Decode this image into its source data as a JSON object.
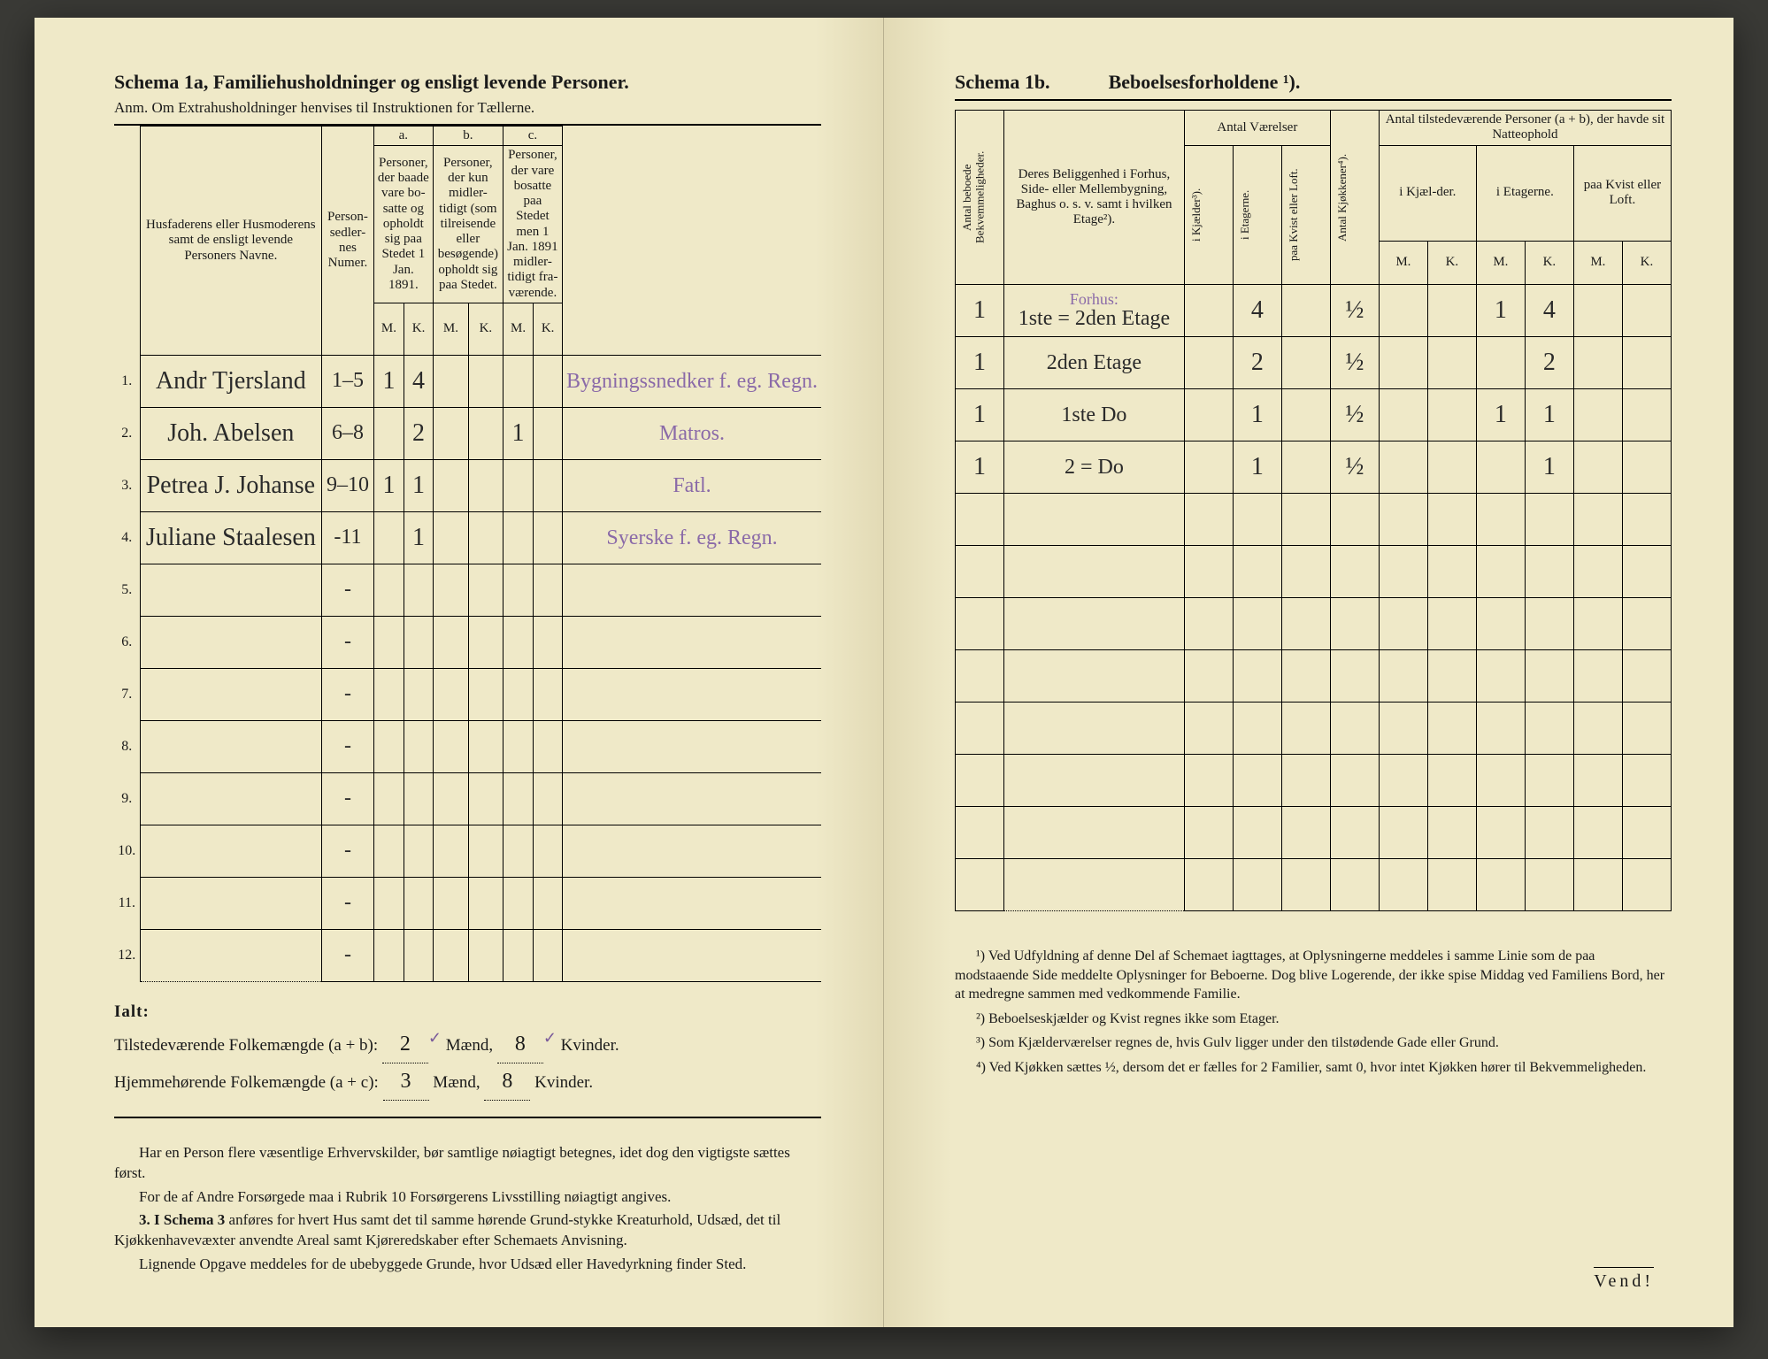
{
  "left": {
    "schema_label": "Schema 1a,",
    "schema_title": "Familiehusholdninger og ensligt levende Personer.",
    "anm": "Anm. Om Extrahusholdninger henvises til Instruktionen for Tællerne.",
    "col_name": "Husfaderens eller Husmoderens samt de ensligt levende Personers Navne.",
    "col_pers": "Person-sedler-nes Numer.",
    "group_a": "a.",
    "group_a_text": "Personer, der baade vare bo-satte og opholdt sig paa Stedet 1 Jan. 1891.",
    "group_b": "b.",
    "group_b_text": "Personer, der kun midler-tidigt (som tilreisende eller besøgende) opholdt sig paa Stedet.",
    "group_c": "c.",
    "group_c_text": "Personer, der vare bosatte paa Stedet men 1 Jan. 1891 midler-tidigt fra-værende.",
    "mk_m": "M.",
    "mk_k": "K.",
    "rows": [
      {
        "n": "1.",
        "name": "Andr Tjersland",
        "pers": "1–5",
        "am": "1",
        "ak": "4",
        "bm": "",
        "bk": "",
        "cm": "",
        "ck": "",
        "occ": "Bygningssnedker f. eg. Regn."
      },
      {
        "n": "2.",
        "name": "Joh. Abelsen",
        "pers": "6–8",
        "am": "",
        "ak": "2",
        "bm": "",
        "bk": "",
        "cm": "1",
        "ck": "",
        "occ": "Matros."
      },
      {
        "n": "3.",
        "name": "Petrea J. Johanse",
        "pers": "9–10",
        "am": "1",
        "ak": "1",
        "bm": "",
        "bk": "",
        "cm": "",
        "ck": "",
        "occ": "Fatl."
      },
      {
        "n": "4.",
        "name": "Juliane Staalesen",
        "pers": "-11",
        "am": "",
        "ak": "1",
        "bm": "",
        "bk": "",
        "cm": "",
        "ck": "",
        "occ": "Syerske f. eg. Regn."
      },
      {
        "n": "5.",
        "name": "",
        "pers": "-",
        "am": "",
        "ak": "",
        "bm": "",
        "bk": "",
        "cm": "",
        "ck": "",
        "occ": ""
      },
      {
        "n": "6.",
        "name": "",
        "pers": "-",
        "am": "",
        "ak": "",
        "bm": "",
        "bk": "",
        "cm": "",
        "ck": "",
        "occ": ""
      },
      {
        "n": "7.",
        "name": "",
        "pers": "-",
        "am": "",
        "ak": "",
        "bm": "",
        "bk": "",
        "cm": "",
        "ck": "",
        "occ": ""
      },
      {
        "n": "8.",
        "name": "",
        "pers": "-",
        "am": "",
        "ak": "",
        "bm": "",
        "bk": "",
        "cm": "",
        "ck": "",
        "occ": ""
      },
      {
        "n": "9.",
        "name": "",
        "pers": "-",
        "am": "",
        "ak": "",
        "bm": "",
        "bk": "",
        "cm": "",
        "ck": "",
        "occ": ""
      },
      {
        "n": "10.",
        "name": "",
        "pers": "-",
        "am": "",
        "ak": "",
        "bm": "",
        "bk": "",
        "cm": "",
        "ck": "",
        "occ": ""
      },
      {
        "n": "11.",
        "name": "",
        "pers": "-",
        "am": "",
        "ak": "",
        "bm": "",
        "bk": "",
        "cm": "",
        "ck": "",
        "occ": ""
      },
      {
        "n": "12.",
        "name": "",
        "pers": "-",
        "am": "",
        "ak": "",
        "bm": "",
        "bk": "",
        "cm": "",
        "ck": "",
        "occ": ""
      }
    ],
    "ialt": "Ialt:",
    "tot1_label": "Tilstedeværende Folkemængde (a + b):",
    "tot1_m": "2",
    "tot1_m_unit": "Mænd,",
    "tot1_k": "8",
    "tot1_k_unit": "Kvinder.",
    "tot2_label": "Hjemmehørende Folkemængde (a + c):",
    "tot2_m": "3",
    "tot2_m_unit": "Mænd,",
    "tot2_k": "8",
    "tot2_k_unit": "Kvinder.",
    "para1": "Har en Person flere væsentlige Erhvervskilder, bør samtlige nøiagtigt betegnes, idet dog den vigtigste sættes først.",
    "para2": "For de af Andre Forsørgede maa i Rubrik 10 Forsørgerens Livsstilling nøiagtigt angives.",
    "para3_lead": "3. I Schema 3",
    "para3": " anføres for hvert Hus samt det til samme hørende Grund-stykke Kreaturhold, Udsæd, det til Kjøkkenhavevæxter anvendte Areal samt Kjøreredskaber efter Schemaets Anvisning.",
    "para4": "Lignende Opgave meddeles for de ubebyggede Grunde, hvor Udsæd eller Havedyrkning finder Sted."
  },
  "right": {
    "schema_label": "Schema 1b.",
    "schema_title": "Beboelsesforholdene ¹).",
    "col_bekv": "Antal beboede Bekvemmeligheder.",
    "col_belig": "Deres Beliggenhed i Forhus, Side- eller Mellembygning, Baghus o. s. v. samt i hvilken Etage²).",
    "grp_vaer": "Antal Værelser",
    "v_kj": "i Kjælder³).",
    "v_et": "i Etagerne.",
    "v_kv": "paa Kvist eller Loft.",
    "col_kjok": "Antal Kjøkkener⁴).",
    "grp_pers": "Antal tilstedeværende Personer (a + b), der havde sit Natteophold",
    "p_kj": "i Kjæl-der.",
    "p_et": "i Etagerne.",
    "p_kv": "paa Kvist eller Loft.",
    "mk_m": "M.",
    "mk_k": "K.",
    "forhus": "Forhus:",
    "rows": [
      {
        "bekv": "1",
        "belig": "1ste = 2den Etage",
        "vkj": "",
        "vet": "4",
        "vkv": "",
        "kjok": "½",
        "kjm": "",
        "kjk": "",
        "etm": "1",
        "etk": "4",
        "kvm": "",
        "kvk": ""
      },
      {
        "bekv": "1",
        "belig": "2den Etage",
        "vkj": "",
        "vet": "2",
        "vkv": "",
        "kjok": "½",
        "kjm": "",
        "kjk": "",
        "etm": "",
        "etk": "2",
        "kvm": "",
        "kvk": ""
      },
      {
        "bekv": "1",
        "belig": "1ste   Do",
        "vkj": "",
        "vet": "1",
        "vkv": "",
        "kjok": "½",
        "kjm": "",
        "kjk": "",
        "etm": "1",
        "etk": "1",
        "kvm": "",
        "kvk": ""
      },
      {
        "bekv": "1",
        "belig": "2 =    Do",
        "vkj": "",
        "vet": "1",
        "vkv": "",
        "kjok": "½",
        "kjm": "",
        "kjk": "",
        "etm": "",
        "etk": "1",
        "kvm": "",
        "kvk": ""
      },
      {
        "bekv": "",
        "belig": "",
        "vkj": "",
        "vet": "",
        "vkv": "",
        "kjok": "",
        "kjm": "",
        "kjk": "",
        "etm": "",
        "etk": "",
        "kvm": "",
        "kvk": ""
      },
      {
        "bekv": "",
        "belig": "",
        "vkj": "",
        "vet": "",
        "vkv": "",
        "kjok": "",
        "kjm": "",
        "kjk": "",
        "etm": "",
        "etk": "",
        "kvm": "",
        "kvk": ""
      },
      {
        "bekv": "",
        "belig": "",
        "vkj": "",
        "vet": "",
        "vkv": "",
        "kjok": "",
        "kjm": "",
        "kjk": "",
        "etm": "",
        "etk": "",
        "kvm": "",
        "kvk": ""
      },
      {
        "bekv": "",
        "belig": "",
        "vkj": "",
        "vet": "",
        "vkv": "",
        "kjok": "",
        "kjm": "",
        "kjk": "",
        "etm": "",
        "etk": "",
        "kvm": "",
        "kvk": ""
      },
      {
        "bekv": "",
        "belig": "",
        "vkj": "",
        "vet": "",
        "vkv": "",
        "kjok": "",
        "kjm": "",
        "kjk": "",
        "etm": "",
        "etk": "",
        "kvm": "",
        "kvk": ""
      },
      {
        "bekv": "",
        "belig": "",
        "vkj": "",
        "vet": "",
        "vkv": "",
        "kjok": "",
        "kjm": "",
        "kjk": "",
        "etm": "",
        "etk": "",
        "kvm": "",
        "kvk": ""
      },
      {
        "bekv": "",
        "belig": "",
        "vkj": "",
        "vet": "",
        "vkv": "",
        "kjok": "",
        "kjm": "",
        "kjk": "",
        "etm": "",
        "etk": "",
        "kvm": "",
        "kvk": ""
      },
      {
        "bekv": "",
        "belig": "",
        "vkj": "",
        "vet": "",
        "vkv": "",
        "kjok": "",
        "kjm": "",
        "kjk": "",
        "etm": "",
        "etk": "",
        "kvm": "",
        "kvk": ""
      }
    ],
    "fn1_lead": "¹)",
    "fn1": " Ved Udfyldning af denne Del af Schemaet iagttages, at Oplysningerne meddeles i samme Linie som de paa modstaaende Side meddelte Oplysninger for Beboerne. Dog blive Logerende, der ikke spise Middag ved Familiens Bord, her at medregne sammen med vedkommende Familie.",
    "fn2_lead": "²)",
    "fn2": " Beboelseskjælder og Kvist regnes ikke som Etager.",
    "fn3_lead": "³)",
    "fn3": " Som Kjælderværelser regnes de, hvis Gulv ligger under den tilstødende Gade eller Grund.",
    "fn4_lead": "⁴)",
    "fn4": " Ved Kjøkken sættes ½, dersom det er fælles for 2 Familier, samt 0, hvor intet Kjøkken hører til Bekvemmeligheden.",
    "vend": "Vend!"
  }
}
